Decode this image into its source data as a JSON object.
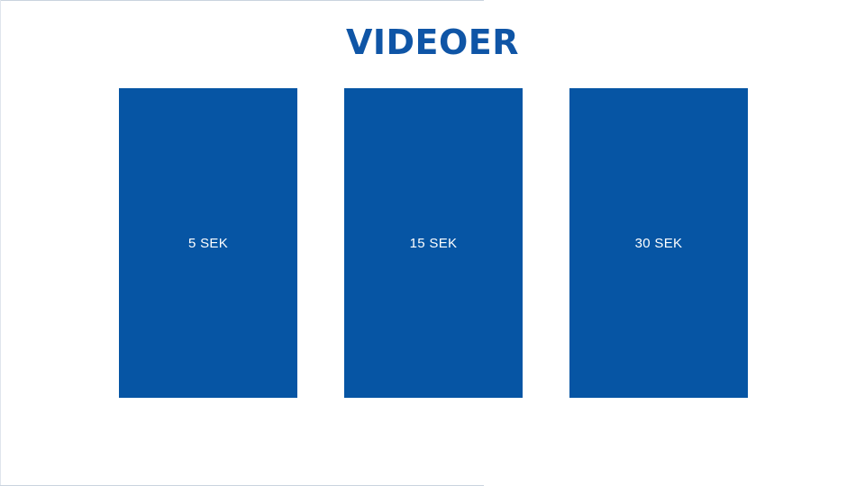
{
  "slide": {
    "title": "VIDEOER"
  },
  "tiles": [
    {
      "label": "5 SEK"
    },
    {
      "label": "15 SEK"
    },
    {
      "label": "30 SEK"
    }
  ],
  "colors": {
    "accent": "#0f55a6",
    "tile_fill": "#0655a4",
    "tile_text": "#ffffff",
    "background": "#ffffff"
  }
}
